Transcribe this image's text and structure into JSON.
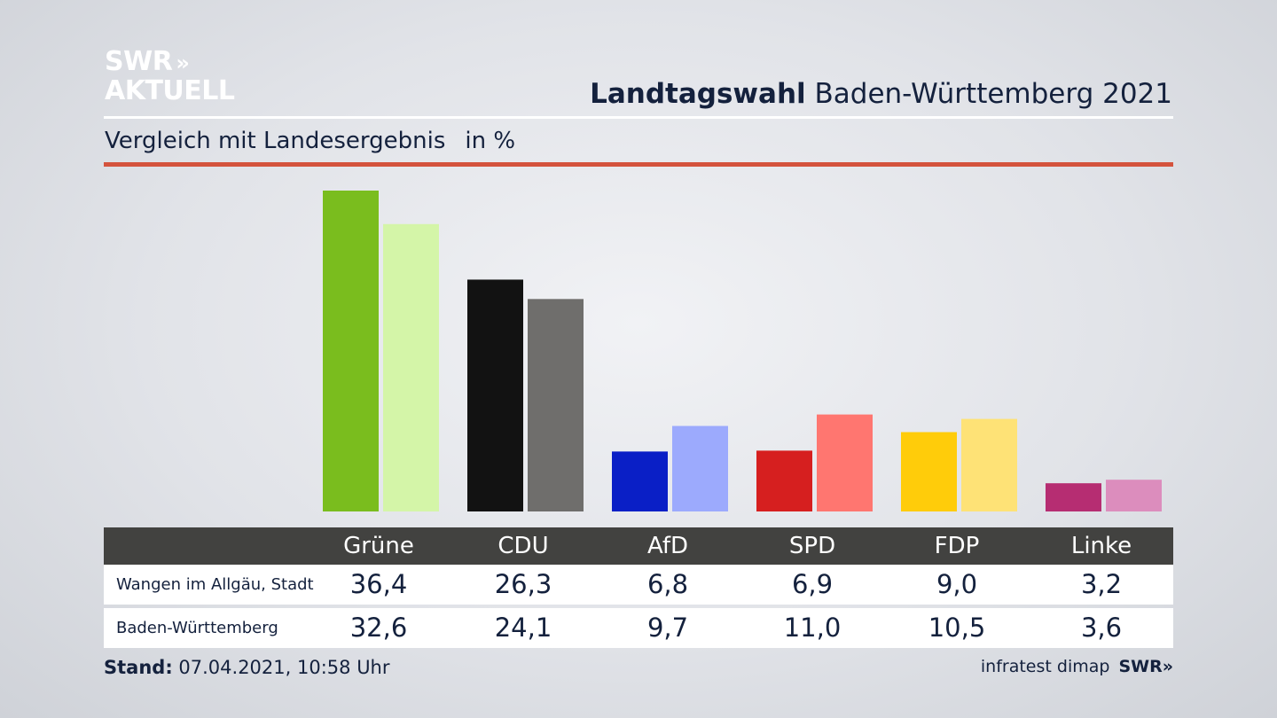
{
  "logo": {
    "line1": "SWR",
    "line2": "AKTUELL",
    "chevrons": "»"
  },
  "header": {
    "title_bold": "Landtagswahl",
    "title_rest": "Baden-Württemberg 2021",
    "subtitle": "Vergleich mit Landesergebnis",
    "unit": "in %"
  },
  "colors": {
    "accent_rule": "#d4533d",
    "table_header": "#424240"
  },
  "chart_data": {
    "type": "bar",
    "categories": [
      "Grüne",
      "CDU",
      "AfD",
      "SPD",
      "FDP",
      "Linke"
    ],
    "series": [
      {
        "name": "Wangen im Allgäu, Stadt",
        "values": [
          36.4,
          26.3,
          6.8,
          6.9,
          9.0,
          3.2
        ],
        "colors": [
          "#7abd1e",
          "#121212",
          "#0a1fc6",
          "#d61f1f",
          "#ffcc0a",
          "#b62d72"
        ]
      },
      {
        "name": "Baden-Württemberg",
        "values": [
          32.6,
          24.1,
          9.7,
          11.0,
          10.5,
          3.6
        ],
        "colors": [
          "#d4f5a8",
          "#6f6e6c",
          "#9caafd",
          "#ff7670",
          "#fee276",
          "#dc8dbd"
        ]
      }
    ],
    "ylim": [
      0,
      36.4
    ]
  },
  "table": {
    "headers": [
      "Grüne",
      "CDU",
      "AfD",
      "SPD",
      "FDP",
      "Linke"
    ],
    "rows": [
      {
        "label": "Wangen im Allgäu, Stadt",
        "values": [
          "36,4",
          "26,3",
          "6,8",
          "6,9",
          "9,0",
          "3,2"
        ]
      },
      {
        "label": "Baden-Württemberg",
        "values": [
          "32,6",
          "24,1",
          "9,7",
          "11,0",
          "10,5",
          "3,6"
        ]
      }
    ]
  },
  "footer": {
    "stand_label": "Stand:",
    "stand_value": "07.04.2021, 10:58 Uhr",
    "source": "infratest dimap",
    "brand": "SWR",
    "brand_chevrons": "»"
  }
}
